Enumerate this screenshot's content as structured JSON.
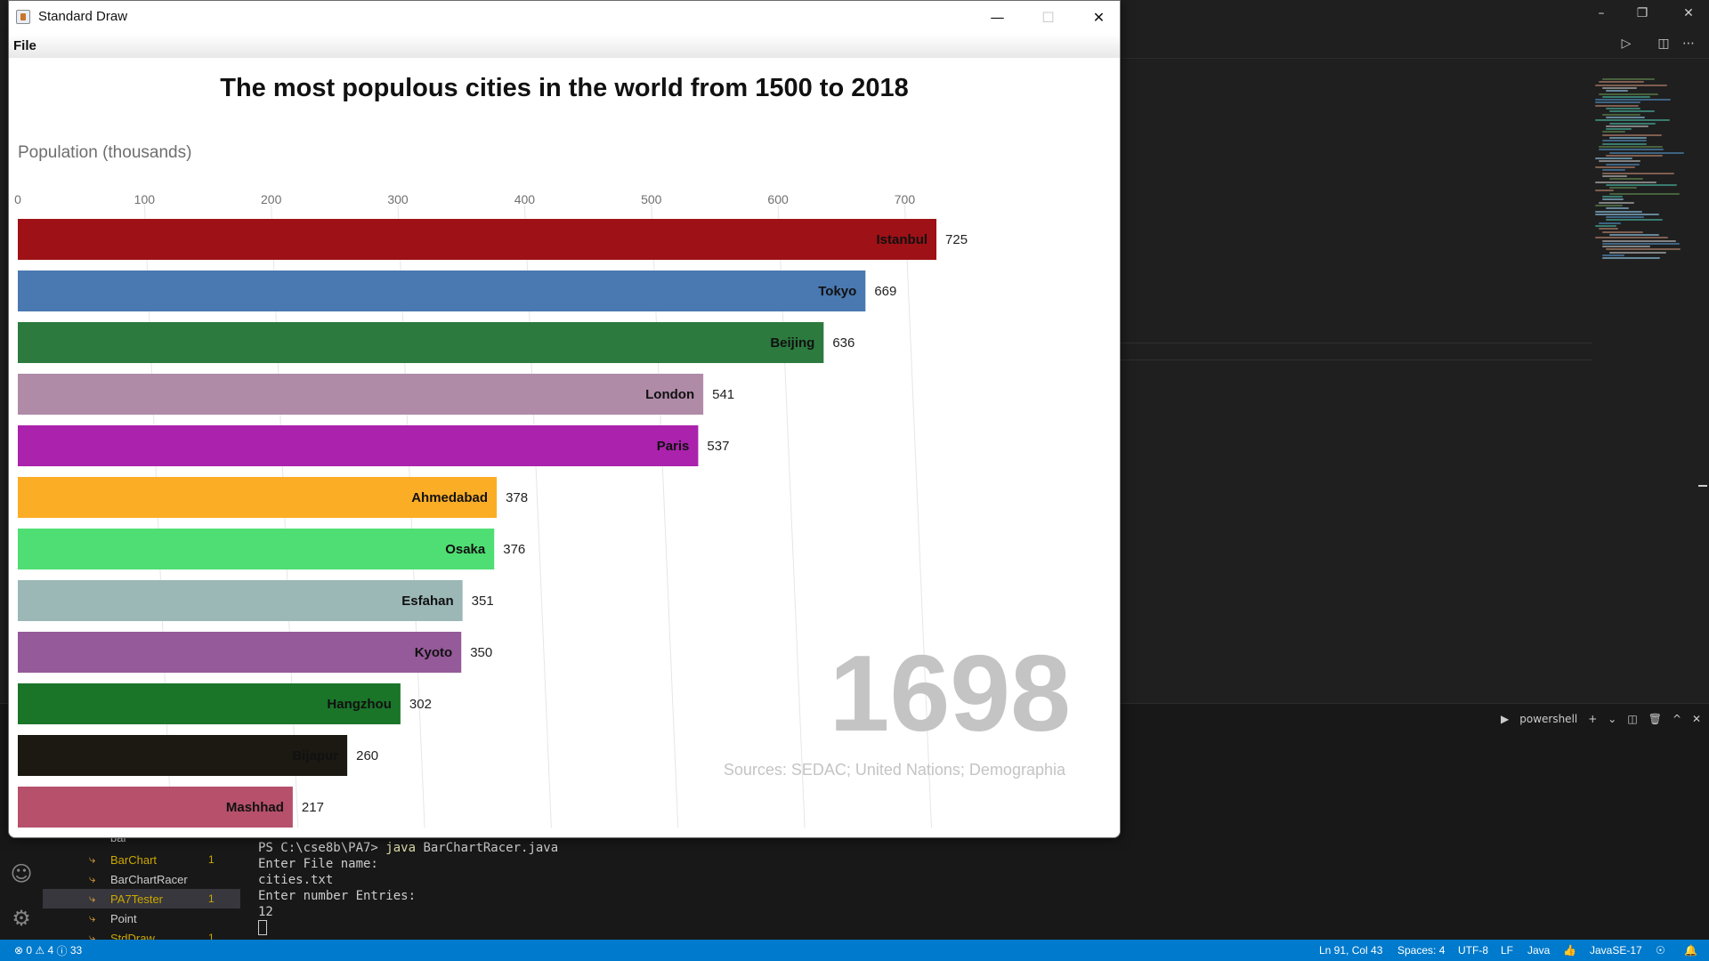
{
  "vscode": {
    "window_controls": {
      "minimize": "–",
      "restore": "❐",
      "close": "✕"
    },
    "editor_toolbar": {
      "run_icon": "▷",
      "split_icon": "◫",
      "more_icon": "⋯"
    },
    "explorer": {
      "items": [
        {
          "label": "bar",
          "count": "",
          "type": "folder"
        },
        {
          "label": "BarChart",
          "count": "1",
          "type": "warning"
        },
        {
          "label": "BarChartRacer",
          "count": "",
          "type": "normal"
        },
        {
          "label": "PA7Tester",
          "count": "1",
          "type": "selected-warning"
        },
        {
          "label": "Point",
          "count": "",
          "type": "normal"
        },
        {
          "label": "StdDraw",
          "count": "1",
          "type": "warning"
        }
      ]
    },
    "terminal": {
      "prompt": "PS C:\\cse8b\\PA7> ",
      "command_keyword": "java",
      "command_rest": " BarChartRacer.java",
      "lines": [
        "Enter File name:",
        "cities.txt",
        "Enter number Entries:",
        "12"
      ]
    },
    "panel": {
      "shell_label": "powershell"
    },
    "statusbar": {
      "errors": "0",
      "warnings": "4",
      "info": "33",
      "position": "Ln 91, Col 43",
      "spaces": "Spaces: 4",
      "encoding": "UTF-8",
      "eol": "LF",
      "language": "Java",
      "runtime": "JavaSE-17"
    }
  },
  "window": {
    "title": "Standard Draw",
    "menu": {
      "file": "File"
    },
    "controls": {
      "minimize": "—",
      "maximize": "☐",
      "close": "✕"
    }
  },
  "chart_data": {
    "type": "bar",
    "orientation": "horizontal",
    "title": "The most populous cities in the world from 1500 to 2018",
    "xlabel": "Population (thousands)",
    "year": "1698",
    "source": "Sources: SEDAC; United Nations; Demographia",
    "xlim": [
      0,
      760
    ],
    "ticks": [
      0,
      100,
      200,
      300,
      400,
      500,
      600,
      700
    ],
    "grid": true,
    "categories": [
      "Istanbul",
      "Tokyo",
      "Beijing",
      "London",
      "Paris",
      "Ahmedabad",
      "Osaka",
      "Esfahan",
      "Kyoto",
      "Hangzhou",
      "Bijapur",
      "Mashhad"
    ],
    "values": [
      725,
      669,
      636,
      541,
      537,
      378,
      376,
      351,
      350,
      302,
      260,
      217
    ],
    "colors": [
      "#9e1116",
      "#4a78b0",
      "#2c7a3e",
      "#b08ba8",
      "#ab22ad",
      "#fcad26",
      "#4fde73",
      "#9bb7b6",
      "#955a99",
      "#1a7529",
      "#1c1913",
      "#b6506b"
    ]
  }
}
